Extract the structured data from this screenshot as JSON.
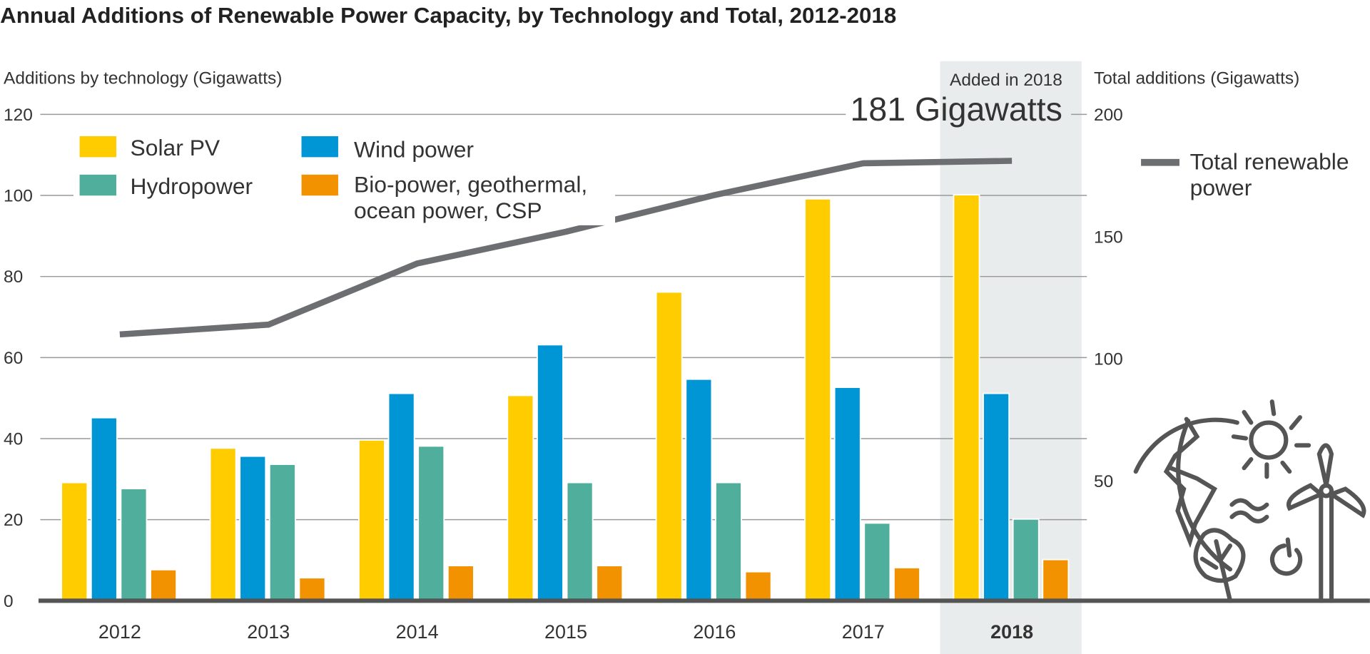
{
  "chart_data": {
    "type": "bar",
    "title": "Annual Additions of Renewable Power Capacity, by Technology and Total, 2012-2018",
    "ylabel": "Additions by technology (Gigawatts)",
    "y2label": "Total additions (Gigawatts)",
    "ylim": [
      0,
      120
    ],
    "y2lim": [
      0,
      200
    ],
    "yticks": [
      0,
      20,
      40,
      60,
      80,
      100,
      120
    ],
    "y2ticks": [
      50,
      100,
      150,
      200
    ],
    "grid": true,
    "legend": "top-left",
    "categories": [
      "2012",
      "2013",
      "2014",
      "2015",
      "2016",
      "2017",
      "2018"
    ],
    "highlight_category": "2018",
    "series": [
      {
        "name": "Solar PV",
        "type": "bar",
        "axis": "left",
        "color": "#ffcc00",
        "values": [
          29,
          37.5,
          39.5,
          50.5,
          76,
          99,
          100
        ]
      },
      {
        "name": "Wind power",
        "type": "bar",
        "axis": "left",
        "color": "#0096d6",
        "values": [
          45,
          35.5,
          51,
          63,
          54.5,
          52.5,
          51
        ]
      },
      {
        "name": "Hydropower",
        "type": "bar",
        "axis": "left",
        "color": "#4fae9c",
        "values": [
          27.5,
          33.5,
          38,
          29,
          29,
          19,
          20
        ]
      },
      {
        "name": "Bio-power, geothermal, ocean power, CSP",
        "type": "bar",
        "axis": "left",
        "color": "#f39200",
        "values": [
          7.5,
          5.5,
          8.5,
          8.5,
          7,
          8,
          10
        ]
      },
      {
        "name": "Total renewable power",
        "type": "line",
        "axis": "right",
        "color": "#6d6e71",
        "values": [
          110,
          114,
          139,
          152,
          167,
          180,
          181
        ]
      }
    ],
    "annotation": {
      "line1": "Added in 2018",
      "line2": "181 Gigawatts"
    },
    "legend_labels": {
      "solar": "Solar PV",
      "wind": "Wind power",
      "hydro": "Hydropower",
      "other_line1": "Bio-power, geothermal,",
      "other_line2": "ocean power, CSP",
      "total_line1": "Total renewable",
      "total_line2": "power"
    },
    "icons": [
      "globe-icon",
      "sun-icon",
      "wind-turbine-icon",
      "leaf-icon",
      "water-wave-icon"
    ]
  }
}
